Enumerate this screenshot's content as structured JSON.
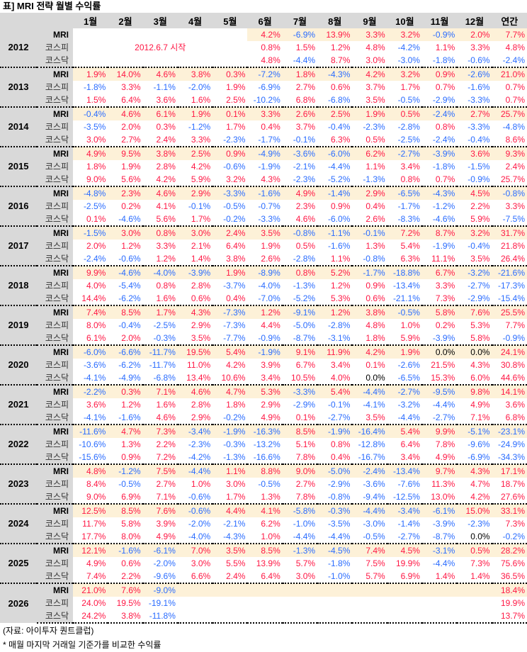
{
  "title": "표] MRI 전략 월별 수익률",
  "headers": [
    "1월",
    "2월",
    "3월",
    "4월",
    "5월",
    "6월",
    "7월",
    "8월",
    "9월",
    "10월",
    "11월",
    "12월",
    "연간"
  ],
  "start_note": "2012.6.7 시작",
  "colors": {
    "positive": "#ff1744",
    "negative": "#2a6cff",
    "highlight": "#fdf1d8",
    "header": "#d9d9d9"
  },
  "years": [
    {
      "year": "2012",
      "rows": [
        {
          "label": "MRI",
          "values": [
            "",
            "",
            "",
            "",
            "",
            "4.2%",
            "-6.9%",
            "13.9%",
            "3.3%",
            "3.2%",
            "-0.9%",
            "2.0%",
            "7.7%"
          ]
        },
        {
          "label": "코스피",
          "values": [
            "",
            "",
            "",
            "",
            "",
            "0.8%",
            "1.5%",
            "1.2%",
            "4.8%",
            "-4.2%",
            "1.1%",
            "3.3%",
            "4.8%"
          ]
        },
        {
          "label": "코스닥",
          "values": [
            "",
            "",
            "",
            "",
            "",
            "4.8%",
            "-4.4%",
            "8.7%",
            "3.0%",
            "-3.0%",
            "-1.8%",
            "-0.6%",
            "-2.4%"
          ]
        }
      ]
    },
    {
      "year": "2013",
      "rows": [
        {
          "label": "MRI",
          "values": [
            "1.9%",
            "14.0%",
            "4.6%",
            "3.8%",
            "0.3%",
            "-7.2%",
            "1.8%",
            "-4.3%",
            "4.2%",
            "3.2%",
            "0.9%",
            "-2.6%",
            "21.0%"
          ]
        },
        {
          "label": "코스피",
          "values": [
            "-1.8%",
            "3.3%",
            "-1.1%",
            "-2.0%",
            "1.9%",
            "-6.9%",
            "2.7%",
            "0.6%",
            "3.7%",
            "1.7%",
            "0.7%",
            "-1.6%",
            "0.7%"
          ]
        },
        {
          "label": "코스닥",
          "values": [
            "1.5%",
            "6.4%",
            "3.6%",
            "1.6%",
            "2.5%",
            "-10.2%",
            "6.8%",
            "-6.8%",
            "3.5%",
            "-0.5%",
            "-2.9%",
            "-3.3%",
            "0.7%"
          ]
        }
      ]
    },
    {
      "year": "2014",
      "rows": [
        {
          "label": "MRI",
          "values": [
            "-0.4%",
            "4.6%",
            "6.1%",
            "1.9%",
            "0.1%",
            "3.3%",
            "2.6%",
            "2.5%",
            "1.9%",
            "0.5%",
            "-2.4%",
            "2.7%",
            "25.7%"
          ]
        },
        {
          "label": "코스피",
          "values": [
            "-3.5%",
            "2.0%",
            "0.3%",
            "-1.2%",
            "1.7%",
            "0.4%",
            "3.7%",
            "-0.4%",
            "-2.3%",
            "-2.8%",
            "0.8%",
            "-3.3%",
            "-4.8%"
          ]
        },
        {
          "label": "코스닥",
          "values": [
            "3.0%",
            "2.7%",
            "2.4%",
            "3.3%",
            "-2.3%",
            "-1.7%",
            "-0.1%",
            "6.3%",
            "0.5%",
            "-2.5%",
            "-2.4%",
            "-0.4%",
            "8.6%"
          ]
        }
      ]
    },
    {
      "year": "2015",
      "rows": [
        {
          "label": "MRI",
          "values": [
            "4.9%",
            "9.5%",
            "3.8%",
            "2.5%",
            "0.9%",
            "-4.9%",
            "-3.6%",
            "-6.0%",
            "6.2%",
            "-2.7%",
            "-3.9%",
            "3.6%",
            "9.3%"
          ]
        },
        {
          "label": "코스피",
          "values": [
            "1.8%",
            "1.9%",
            "2.8%",
            "4.2%",
            "-0.6%",
            "-1.9%",
            "-2.1%",
            "-4.4%",
            "1.1%",
            "3.4%",
            "-1.8%",
            "-1.5%",
            "2.4%"
          ]
        },
        {
          "label": "코스닥",
          "values": [
            "9.0%",
            "5.6%",
            "4.2%",
            "5.9%",
            "3.2%",
            "4.3%",
            "-2.3%",
            "-5.2%",
            "-1.3%",
            "0.8%",
            "0.7%",
            "-0.9%",
            "25.7%"
          ]
        }
      ]
    },
    {
      "year": "2016",
      "rows": [
        {
          "label": "MRI",
          "values": [
            "-4.8%",
            "2.3%",
            "4.6%",
            "2.9%",
            "-3.3%",
            "-1.6%",
            "4.9%",
            "-1.4%",
            "2.9%",
            "-6.5%",
            "-4.3%",
            "4.5%",
            "-0.8%"
          ]
        },
        {
          "label": "코스피",
          "values": [
            "-2.5%",
            "0.2%",
            "4.1%",
            "-0.1%",
            "-0.5%",
            "-0.7%",
            "2.3%",
            "0.9%",
            "0.4%",
            "-1.7%",
            "-1.2%",
            "2.2%",
            "3.3%"
          ]
        },
        {
          "label": "코스닥",
          "values": [
            "0.1%",
            "-4.6%",
            "5.6%",
            "1.7%",
            "-0.2%",
            "-3.3%",
            "4.6%",
            "-6.0%",
            "2.6%",
            "-8.3%",
            "-4.6%",
            "5.9%",
            "-7.5%"
          ]
        }
      ]
    },
    {
      "year": "2017",
      "rows": [
        {
          "label": "MRI",
          "values": [
            "-1.5%",
            "3.0%",
            "0.8%",
            "3.0%",
            "2.4%",
            "3.5%",
            "-0.8%",
            "-1.1%",
            "-0.1%",
            "7.2%",
            "8.7%",
            "3.2%",
            "31.7%"
          ]
        },
        {
          "label": "코스피",
          "values": [
            "2.0%",
            "1.2%",
            "3.3%",
            "2.1%",
            "6.4%",
            "1.9%",
            "0.5%",
            "-1.6%",
            "1.3%",
            "5.4%",
            "-1.9%",
            "-0.4%",
            "21.8%"
          ]
        },
        {
          "label": "코스닥",
          "values": [
            "-2.4%",
            "-0.6%",
            "1.2%",
            "1.4%",
            "3.8%",
            "2.6%",
            "-2.8%",
            "1.1%",
            "-0.8%",
            "6.3%",
            "11.1%",
            "3.5%",
            "26.4%"
          ]
        }
      ]
    },
    {
      "year": "2018",
      "rows": [
        {
          "label": "MRI",
          "values": [
            "9.9%",
            "-4.6%",
            "-4.0%",
            "-3.9%",
            "1.9%",
            "-8.9%",
            "0.8%",
            "5.2%",
            "-1.7%",
            "-18.8%",
            "6.7%",
            "-3.2%",
            "-21.6%"
          ]
        },
        {
          "label": "코스피",
          "values": [
            "4.0%",
            "-5.4%",
            "0.8%",
            "2.8%",
            "-3.7%",
            "-4.0%",
            "-1.3%",
            "1.2%",
            "0.9%",
            "-13.4%",
            "3.3%",
            "-2.7%",
            "-17.3%"
          ]
        },
        {
          "label": "코스닥",
          "values": [
            "14.4%",
            "-6.2%",
            "1.6%",
            "0.6%",
            "0.4%",
            "-7.0%",
            "-5.2%",
            "5.3%",
            "0.6%",
            "-21.1%",
            "7.3%",
            "-2.9%",
            "-15.4%"
          ]
        }
      ]
    },
    {
      "year": "2019",
      "rows": [
        {
          "label": "MRI",
          "values": [
            "7.4%",
            "8.5%",
            "1.7%",
            "4.3%",
            "-7.3%",
            "1.2%",
            "-9.1%",
            "1.2%",
            "3.8%",
            "-0.5%",
            "5.8%",
            "7.6%",
            "25.5%"
          ]
        },
        {
          "label": "코스피",
          "values": [
            "8.0%",
            "-0.4%",
            "-2.5%",
            "2.9%",
            "-7.3%",
            "4.4%",
            "-5.0%",
            "-2.8%",
            "4.8%",
            "1.0%",
            "0.2%",
            "5.3%",
            "7.7%"
          ]
        },
        {
          "label": "코스닥",
          "values": [
            "6.1%",
            "2.0%",
            "-0.3%",
            "3.5%",
            "-7.7%",
            "-0.9%",
            "-8.7%",
            "-3.1%",
            "1.8%",
            "5.9%",
            "-3.9%",
            "5.8%",
            "-0.9%"
          ]
        }
      ]
    },
    {
      "year": "2020",
      "rows": [
        {
          "label": "MRI",
          "values": [
            "-6.0%",
            "-6.6%",
            "-11.7%",
            "19.5%",
            "5.4%",
            "-1.9%",
            "9.1%",
            "11.9%",
            "4.2%",
            "1.9%",
            "0.0%",
            "0.0%",
            "24.1%"
          ]
        },
        {
          "label": "코스피",
          "values": [
            "-3.6%",
            "-6.2%",
            "-11.7%",
            "11.0%",
            "4.2%",
            "3.9%",
            "6.7%",
            "3.4%",
            "0.1%",
            "-2.6%",
            "21.5%",
            "4.3%",
            "30.8%"
          ]
        },
        {
          "label": "코스닥",
          "values": [
            "-4.1%",
            "-4.9%",
            "-6.8%",
            "13.4%",
            "10.6%",
            "3.4%",
            "10.5%",
            "4.0%",
            "0.0%",
            "-6.5%",
            "15.3%",
            "6.0%",
            "44.6%"
          ]
        }
      ]
    },
    {
      "year": "2021",
      "rows": [
        {
          "label": "MRI",
          "values": [
            "-2.2%",
            "0.3%",
            "7.1%",
            "4.6%",
            "4.7%",
            "5.3%",
            "-3.3%",
            "5.4%",
            "-4.4%",
            "-2.7%",
            "-9.5%",
            "9.8%",
            "14.1%"
          ]
        },
        {
          "label": "코스피",
          "values": [
            "3.6%",
            "1.2%",
            "1.6%",
            "2.8%",
            "1.8%",
            "2.9%",
            "-2.9%",
            "-0.1%",
            "-4.1%",
            "-3.2%",
            "-4.4%",
            "4.9%",
            "3.6%"
          ]
        },
        {
          "label": "코스닥",
          "values": [
            "-4.1%",
            "-1.6%",
            "4.6%",
            "2.9%",
            "-0.2%",
            "4.9%",
            "0.1%",
            "-2.7%",
            "3.5%",
            "-4.4%",
            "-2.7%",
            "7.1%",
            "6.8%"
          ]
        }
      ]
    },
    {
      "year": "2022",
      "rows": [
        {
          "label": "MRI",
          "values": [
            "-11.6%",
            "4.7%",
            "7.3%",
            "-3.4%",
            "-1.9%",
            "-16.3%",
            "8.5%",
            "-1.9%",
            "-16.4%",
            "5.4%",
            "9.9%",
            "-5.1%",
            "-23.1%"
          ]
        },
        {
          "label": "코스피",
          "values": [
            "-10.6%",
            "1.3%",
            "2.2%",
            "-2.3%",
            "-0.3%",
            "-13.2%",
            "5.1%",
            "0.8%",
            "-12.8%",
            "6.4%",
            "7.8%",
            "-9.6%",
            "-24.9%"
          ]
        },
        {
          "label": "코스닥",
          "values": [
            "-15.6%",
            "0.9%",
            "7.2%",
            "-4.2%",
            "-1.3%",
            "-16.6%",
            "7.8%",
            "0.4%",
            "-16.7%",
            "3.4%",
            "4.9%",
            "-6.9%",
            "-34.3%"
          ]
        }
      ]
    },
    {
      "year": "2023",
      "rows": [
        {
          "label": "MRI",
          "values": [
            "4.8%",
            "-1.2%",
            "7.5%",
            "-4.4%",
            "1.1%",
            "8.8%",
            "9.0%",
            "-5.0%",
            "-2.4%",
            "-13.4%",
            "9.7%",
            "4.3%",
            "17.1%"
          ]
        },
        {
          "label": "코스피",
          "values": [
            "8.4%",
            "-0.5%",
            "2.7%",
            "1.0%",
            "3.0%",
            "-0.5%",
            "2.7%",
            "-2.9%",
            "-3.6%",
            "-7.6%",
            "11.3%",
            "4.7%",
            "18.7%"
          ]
        },
        {
          "label": "코스닥",
          "values": [
            "9.0%",
            "6.9%",
            "7.1%",
            "-0.6%",
            "1.7%",
            "1.3%",
            "7.8%",
            "-0.8%",
            "-9.4%",
            "-12.5%",
            "13.0%",
            "4.2%",
            "27.6%"
          ]
        }
      ]
    },
    {
      "year": "2024",
      "rows": [
        {
          "label": "MRI",
          "values": [
            "12.5%",
            "8.5%",
            "7.6%",
            "-0.6%",
            "4.4%",
            "4.1%",
            "-5.8%",
            "-0.3%",
            "-4.4%",
            "-3.4%",
            "-6.1%",
            "15.0%",
            "33.1%"
          ]
        },
        {
          "label": "코스피",
          "values": [
            "11.7%",
            "5.8%",
            "3.9%",
            "-2.0%",
            "-2.1%",
            "6.2%",
            "-1.0%",
            "-3.5%",
            "-3.0%",
            "-1.4%",
            "-3.9%",
            "-2.3%",
            "7.3%"
          ]
        },
        {
          "label": "코스닥",
          "values": [
            "17.7%",
            "8.0%",
            "4.9%",
            "-4.0%",
            "-4.3%",
            "1.0%",
            "-4.4%",
            "-4.4%",
            "-0.5%",
            "-2.7%",
            "-8.7%",
            "0.0%",
            "-0.2%"
          ]
        }
      ]
    },
    {
      "year": "2025",
      "rows": [
        {
          "label": "MRI",
          "values": [
            "12.1%",
            "-1.6%",
            "-6.1%",
            "7.0%",
            "3.5%",
            "8.5%",
            "-1.3%",
            "-4.5%",
            "7.4%",
            "4.5%",
            "-3.1%",
            "0.5%",
            "28.2%"
          ]
        },
        {
          "label": "코스피",
          "values": [
            "4.9%",
            "0.6%",
            "-2.0%",
            "3.0%",
            "5.5%",
            "13.9%",
            "5.7%",
            "-1.8%",
            "7.5%",
            "19.9%",
            "-4.4%",
            "7.3%",
            "75.6%"
          ]
        },
        {
          "label": "코스닥",
          "values": [
            "7.4%",
            "2.2%",
            "-9.6%",
            "6.6%",
            "2.4%",
            "6.4%",
            "3.0%",
            "-1.0%",
            "5.7%",
            "6.9%",
            "1.4%",
            "1.4%",
            "36.5%"
          ]
        }
      ]
    },
    {
      "year": "2026",
      "rows": [
        {
          "label": "MRI",
          "values": [
            "21.0%",
            "7.6%",
            "-9.0%",
            "",
            "",
            "",
            "",
            "",
            "",
            "",
            "",
            "",
            "18.4%"
          ]
        },
        {
          "label": "코스피",
          "values": [
            "24.0%",
            "19.5%",
            "-19.1%",
            "",
            "",
            "",
            "",
            "",
            "",
            "",
            "",
            "",
            "19.9%"
          ]
        },
        {
          "label": "코스닥",
          "values": [
            "24.2%",
            "3.8%",
            "-11.8%",
            "",
            "",
            "",
            "",
            "",
            "",
            "",
            "",
            "",
            "13.7%"
          ]
        }
      ]
    }
  ],
  "footer": {
    "source": "(자료: 아이투자 퀀트클럽)",
    "note": "* 매월 마지막 거래일 기준가를 비교한 수익률"
  }
}
